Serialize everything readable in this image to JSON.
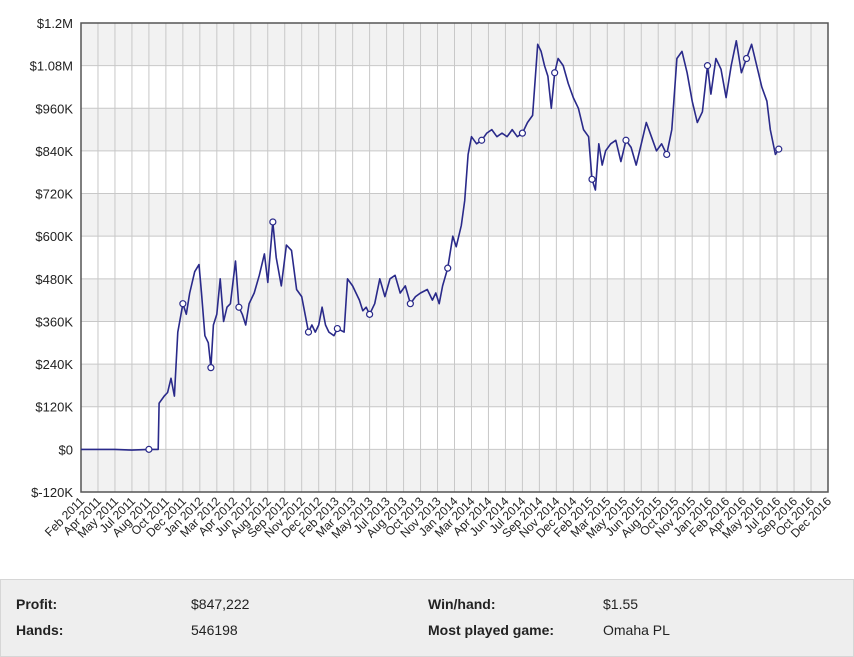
{
  "chart_data": {
    "type": "line",
    "y_ticks": [
      "$1.2M",
      "$1.08M",
      "$960K",
      "$840K",
      "$720K",
      "$600K",
      "$480K",
      "$360K",
      "$240K",
      "$120K",
      "$0",
      "$-120K"
    ],
    "x_ticks": [
      "Feb 2011",
      "Apr 2011",
      "May 2011",
      "Jul 2011",
      "Aug 2011",
      "Oct 2011",
      "Dec 2011",
      "Jan 2012",
      "Mar 2012",
      "Apr 2012",
      "Jun 2012",
      "Aug 2012",
      "Sep 2012",
      "Nov 2012",
      "Dec 2012",
      "Feb 2013",
      "Mar 2013",
      "May 2013",
      "Jul 2013",
      "Aug 2013",
      "Oct 2013",
      "Nov 2013",
      "Jan 2014",
      "Mar 2014",
      "Apr 2014",
      "Jun 2014",
      "Jul 2014",
      "Sep 2014",
      "Nov 2014",
      "Dec 2014",
      "Feb 2015",
      "Mar 2015",
      "May 2015",
      "Jun 2015",
      "Aug 2015",
      "Oct 2015",
      "Nov 2015",
      "Jan 2016",
      "Feb 2016",
      "Apr 2016",
      "May 2016",
      "Jul 2016",
      "Sep 2016",
      "Oct 2016",
      "Dec 2016"
    ],
    "ylim": [
      -120000,
      1200000
    ],
    "grid": true,
    "line_color": "#2a2a8a",
    "series": [
      {
        "points": [
          [
            0.0,
            0
          ],
          [
            2.0,
            0
          ],
          [
            3.0,
            -2000
          ],
          [
            4.0,
            0
          ],
          [
            4.55,
            0
          ],
          [
            4.6,
            130000
          ],
          [
            4.9,
            150000
          ],
          [
            5.1,
            160000
          ],
          [
            5.3,
            200000
          ],
          [
            5.5,
            150000
          ],
          [
            5.7,
            330000
          ],
          [
            6.0,
            410000
          ],
          [
            6.2,
            380000
          ],
          [
            6.4,
            440000
          ],
          [
            6.7,
            500000
          ],
          [
            6.95,
            520000
          ],
          [
            7.1,
            440000
          ],
          [
            7.3,
            320000
          ],
          [
            7.5,
            300000
          ],
          [
            7.65,
            230000
          ],
          [
            7.8,
            350000
          ],
          [
            8.0,
            380000
          ],
          [
            8.2,
            480000
          ],
          [
            8.4,
            360000
          ],
          [
            8.6,
            400000
          ],
          [
            8.8,
            410000
          ],
          [
            9.1,
            530000
          ],
          [
            9.3,
            400000
          ],
          [
            9.5,
            380000
          ],
          [
            9.7,
            350000
          ],
          [
            9.9,
            410000
          ],
          [
            10.2,
            440000
          ],
          [
            10.5,
            490000
          ],
          [
            10.8,
            550000
          ],
          [
            11.0,
            470000
          ],
          [
            11.3,
            640000
          ],
          [
            11.5,
            540000
          ],
          [
            11.8,
            460000
          ],
          [
            12.1,
            575000
          ],
          [
            12.4,
            560000
          ],
          [
            12.7,
            450000
          ],
          [
            13.0,
            430000
          ],
          [
            13.2,
            380000
          ],
          [
            13.4,
            330000
          ],
          [
            13.6,
            350000
          ],
          [
            13.8,
            330000
          ],
          [
            14.0,
            350000
          ],
          [
            14.2,
            400000
          ],
          [
            14.4,
            350000
          ],
          [
            14.6,
            330000
          ],
          [
            14.9,
            320000
          ],
          [
            15.1,
            340000
          ],
          [
            15.5,
            330000
          ],
          [
            15.7,
            480000
          ],
          [
            16.0,
            460000
          ],
          [
            16.2,
            440000
          ],
          [
            16.4,
            420000
          ],
          [
            16.6,
            390000
          ],
          [
            16.8,
            400000
          ],
          [
            17.0,
            380000
          ],
          [
            17.3,
            410000
          ],
          [
            17.6,
            480000
          ],
          [
            17.9,
            430000
          ],
          [
            18.2,
            480000
          ],
          [
            18.5,
            490000
          ],
          [
            18.8,
            440000
          ],
          [
            19.1,
            460000
          ],
          [
            19.4,
            410000
          ],
          [
            19.7,
            430000
          ],
          [
            20.0,
            440000
          ],
          [
            20.4,
            450000
          ],
          [
            20.7,
            420000
          ],
          [
            20.9,
            440000
          ],
          [
            21.1,
            410000
          ],
          [
            21.3,
            460000
          ],
          [
            21.6,
            510000
          ],
          [
            21.9,
            600000
          ],
          [
            22.1,
            570000
          ],
          [
            22.4,
            630000
          ],
          [
            22.6,
            700000
          ],
          [
            22.8,
            830000
          ],
          [
            23.0,
            880000
          ],
          [
            23.3,
            860000
          ],
          [
            23.6,
            870000
          ],
          [
            23.9,
            890000
          ],
          [
            24.2,
            900000
          ],
          [
            24.5,
            880000
          ],
          [
            24.8,
            890000
          ],
          [
            25.1,
            880000
          ],
          [
            25.4,
            900000
          ],
          [
            25.7,
            880000
          ],
          [
            26.0,
            890000
          ],
          [
            26.3,
            920000
          ],
          [
            26.6,
            940000
          ],
          [
            26.9,
            1140000
          ],
          [
            27.1,
            1120000
          ],
          [
            27.3,
            1080000
          ],
          [
            27.5,
            1050000
          ],
          [
            27.7,
            960000
          ],
          [
            27.9,
            1060000
          ],
          [
            28.1,
            1100000
          ],
          [
            28.4,
            1080000
          ],
          [
            28.7,
            1030000
          ],
          [
            29.0,
            990000
          ],
          [
            29.3,
            960000
          ],
          [
            29.6,
            900000
          ],
          [
            29.9,
            880000
          ],
          [
            30.1,
            760000
          ],
          [
            30.3,
            730000
          ],
          [
            30.5,
            860000
          ],
          [
            30.7,
            800000
          ],
          [
            30.9,
            840000
          ],
          [
            31.2,
            860000
          ],
          [
            31.5,
            870000
          ],
          [
            31.8,
            810000
          ],
          [
            32.1,
            870000
          ],
          [
            32.4,
            850000
          ],
          [
            32.7,
            800000
          ],
          [
            33.0,
            860000
          ],
          [
            33.3,
            920000
          ],
          [
            33.6,
            880000
          ],
          [
            33.9,
            840000
          ],
          [
            34.2,
            860000
          ],
          [
            34.5,
            830000
          ],
          [
            34.8,
            900000
          ],
          [
            35.1,
            1100000
          ],
          [
            35.4,
            1120000
          ],
          [
            35.7,
            1060000
          ],
          [
            36.0,
            980000
          ],
          [
            36.3,
            920000
          ],
          [
            36.6,
            950000
          ],
          [
            36.9,
            1080000
          ],
          [
            37.1,
            1000000
          ],
          [
            37.4,
            1100000
          ],
          [
            37.7,
            1070000
          ],
          [
            38.0,
            990000
          ],
          [
            38.3,
            1080000
          ],
          [
            38.6,
            1150000
          ],
          [
            38.9,
            1060000
          ],
          [
            39.2,
            1100000
          ],
          [
            39.5,
            1140000
          ],
          [
            39.8,
            1080000
          ],
          [
            40.1,
            1020000
          ],
          [
            40.4,
            980000
          ],
          [
            40.6,
            900000
          ],
          [
            40.9,
            830000
          ],
          [
            41.1,
            845000
          ]
        ]
      }
    ]
  },
  "stats": {
    "profit_label": "Profit:",
    "profit_value": "$847,222",
    "hands_label": "Hands:",
    "hands_value": "546198",
    "winhand_label": "Win/hand:",
    "winhand_value": "$1.55",
    "game_label": "Most played game:",
    "game_value": "Omaha PL"
  }
}
